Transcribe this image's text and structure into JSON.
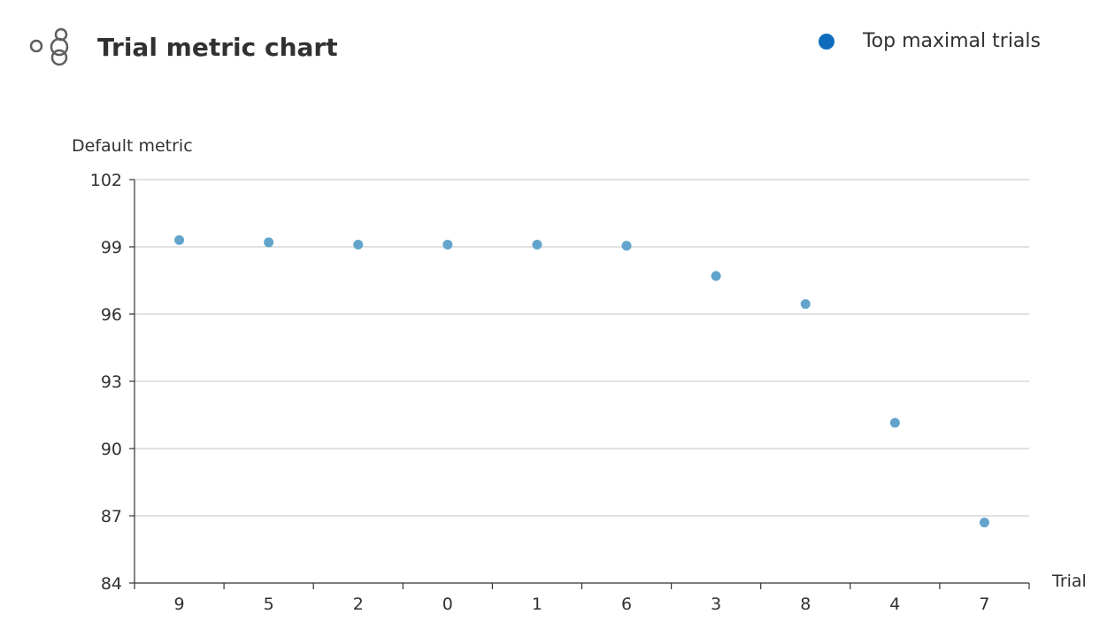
{
  "header": {
    "title": "Trial metric chart",
    "icon": "hyperparameter-icon"
  },
  "legend": {
    "label": "Top maximal trials",
    "color": "#0f6cbd"
  },
  "chart_data": {
    "type": "scatter",
    "title": "Trial metric chart",
    "xlabel": "Trial",
    "ylabel": "Default metric",
    "categories": [
      "9",
      "5",
      "2",
      "0",
      "1",
      "6",
      "3",
      "8",
      "4",
      "7"
    ],
    "ylim": [
      84,
      102
    ],
    "yticks": [
      84,
      87,
      90,
      93,
      96,
      99,
      102
    ],
    "grid": true,
    "legend_position": "top-right",
    "series": [
      {
        "name": "Top maximal trials",
        "color": "#62a4cc",
        "values": [
          99.3,
          99.2,
          99.1,
          99.1,
          99.1,
          99.05,
          97.7,
          96.45,
          91.15,
          86.7
        ]
      }
    ]
  }
}
